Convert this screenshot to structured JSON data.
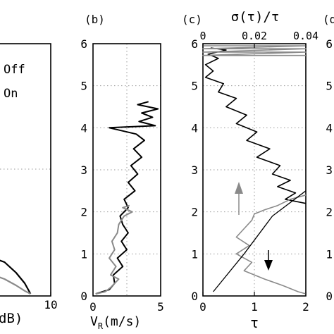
{
  "colors": {
    "black": "#000000",
    "gray": "#8a8a8a"
  },
  "chart_data": [
    {
      "type": "line",
      "panel_label": "",
      "xlabel": "dB)",
      "xticks": [
        "10"
      ],
      "yticks": [],
      "legend": {
        "entries": [
          "Off",
          "On"
        ],
        "placement": "top-right"
      },
      "series": [
        {
          "color": "black",
          "points": [
            [
              0,
              0.9
            ],
            [
              2,
              0.8
            ],
            [
              4,
              0.55
            ],
            [
              5.5,
              0.3
            ],
            [
              6.3,
              0.1
            ],
            [
              6.5,
              0.05
            ]
          ]
        },
        {
          "color": "gray",
          "points": [
            [
              0,
              0.5
            ],
            [
              2,
              0.4
            ],
            [
              4,
              0.25
            ],
            [
              5.5,
              0.12
            ],
            [
              6.5,
              0.05
            ]
          ]
        }
      ]
    },
    {
      "type": "line",
      "panel_label": "(b)",
      "xlabel_main": "V",
      "xlabel_sub": "R",
      "xlabel_tail": "(m/s)",
      "xlim": [
        0,
        5
      ],
      "ylim": [
        0,
        6
      ],
      "xticks": [
        "0",
        "5"
      ],
      "yticks": [
        "0",
        "1",
        "2",
        "3",
        "4",
        "5",
        "6"
      ],
      "series": [
        {
          "color": "black",
          "points": [
            [
              0.2,
              0.05
            ],
            [
              1.2,
              0.15
            ],
            [
              1.6,
              0.3
            ],
            [
              1.5,
              0.5
            ],
            [
              2.2,
              0.7
            ],
            [
              1.8,
              0.9
            ],
            [
              2.5,
              1.1
            ],
            [
              2.1,
              1.3
            ],
            [
              2.6,
              1.5
            ],
            [
              2.2,
              1.7
            ],
            [
              2.0,
              1.9
            ],
            [
              2.6,
              2.1
            ],
            [
              2.3,
              2.3
            ],
            [
              3.1,
              2.5
            ],
            [
              2.6,
              2.7
            ],
            [
              3.3,
              2.9
            ],
            [
              2.8,
              3.1
            ],
            [
              3.6,
              3.3
            ],
            [
              3.0,
              3.5
            ],
            [
              3.8,
              3.7
            ],
            [
              3.2,
              3.85
            ],
            [
              1.2,
              4.0
            ],
            [
              4.6,
              4.05
            ],
            [
              3.4,
              4.15
            ],
            [
              4.4,
              4.25
            ],
            [
              3.6,
              4.35
            ],
            [
              4.8,
              4.45
            ],
            [
              3.3,
              4.55
            ],
            [
              4.1,
              4.62
            ]
          ]
        },
        {
          "color": "gray",
          "points": [
            [
              0.2,
              0.05
            ],
            [
              0.9,
              0.1
            ],
            [
              1.3,
              0.2
            ],
            [
              1.6,
              0.3
            ],
            [
              1.9,
              0.4
            ],
            [
              1.3,
              0.5
            ],
            [
              1.7,
              0.7
            ],
            [
              1.2,
              0.9
            ],
            [
              1.6,
              1.1
            ],
            [
              1.4,
              1.3
            ],
            [
              1.8,
              1.5
            ],
            [
              1.9,
              1.7
            ],
            [
              2.3,
              1.9
            ],
            [
              2.9,
              2.0
            ],
            [
              2.2,
              2.1
            ],
            [
              2.7,
              2.15
            ]
          ]
        }
      ]
    },
    {
      "type": "line",
      "panel_label": "(c)",
      "xlabel": "τ",
      "top_xlabel": "σ(τ)/τ",
      "xlim": [
        0,
        2
      ],
      "ylim": [
        0,
        6
      ],
      "top_xlim": [
        0,
        0.04
      ],
      "xticks": [
        "0",
        "1",
        "2"
      ],
      "top_xticks": [
        "0",
        "0.02",
        "0.04"
      ],
      "yticks": [
        "0",
        "1",
        "2",
        "3",
        "4",
        "5",
        "6"
      ],
      "arrow_up_color": "gray",
      "arrow_down_color": "black",
      "series": [
        {
          "name": "",
          "color": "black",
          "axis": "top",
          "points": [
            [
              0.003,
              5.9
            ],
            [
              0.009,
              5.85
            ],
            [
              0.002,
              5.75
            ],
            [
              0.006,
              5.65
            ],
            [
              0.001,
              5.5
            ],
            [
              0.004,
              5.35
            ],
            [
              0.001,
              5.2
            ],
            [
              0.008,
              5.05
            ],
            [
              0.006,
              4.85
            ],
            [
              0.013,
              4.7
            ],
            [
              0.009,
              4.5
            ],
            [
              0.017,
              4.3
            ],
            [
              0.013,
              4.1
            ],
            [
              0.021,
              3.9
            ],
            [
              0.017,
              3.7
            ],
            [
              0.026,
              3.5
            ],
            [
              0.021,
              3.3
            ],
            [
              0.03,
              3.1
            ],
            [
              0.027,
              2.9
            ],
            [
              0.034,
              2.75
            ],
            [
              0.029,
              2.6
            ],
            [
              0.036,
              2.45
            ],
            [
              0.032,
              2.3
            ],
            [
              0.04,
              2.2
            ]
          ]
        },
        {
          "name": "",
          "color": "gray",
          "axis": "top",
          "points": [
            [
              0.04,
              2.4
            ],
            [
              0.034,
              2.3
            ],
            [
              0.029,
              2.15
            ],
            [
              0.024,
              2.05
            ],
            [
              0.02,
              1.95
            ],
            [
              0.019,
              1.8
            ],
            [
              0.016,
              1.6
            ],
            [
              0.013,
              1.4
            ],
            [
              0.018,
              1.2
            ],
            [
              0.013,
              1.0
            ],
            [
              0.019,
              0.8
            ],
            [
              0.016,
              0.6
            ],
            [
              0.024,
              0.4
            ],
            [
              0.031,
              0.25
            ],
            [
              0.037,
              0.1
            ],
            [
              0.04,
              0.05
            ]
          ]
        },
        {
          "name": "",
          "color": "black",
          "axis": "bottom",
          "points": [
            [
              0.2,
              0.1
            ],
            [
              0.8,
              1.0
            ],
            [
              1.35,
              1.9
            ],
            [
              2.0,
              2.5
            ]
          ]
        },
        {
          "name": "",
          "color": "gray",
          "axis": "top",
          "points": [
            [
              0.0,
              5.95
            ],
            [
              0.04,
              5.95
            ],
            [
              0.0,
              5.88
            ],
            [
              0.04,
              5.88
            ],
            [
              0.0,
              5.8
            ],
            [
              0.04,
              5.8
            ],
            [
              0.0,
              5.72
            ],
            [
              0.04,
              5.72
            ]
          ]
        }
      ]
    },
    {
      "type": "line",
      "panel_label": "(d",
      "yticks": [
        "0",
        "1",
        "2",
        "3",
        "4",
        "5",
        "6"
      ],
      "ylim": [
        0,
        6
      ],
      "series": []
    }
  ]
}
